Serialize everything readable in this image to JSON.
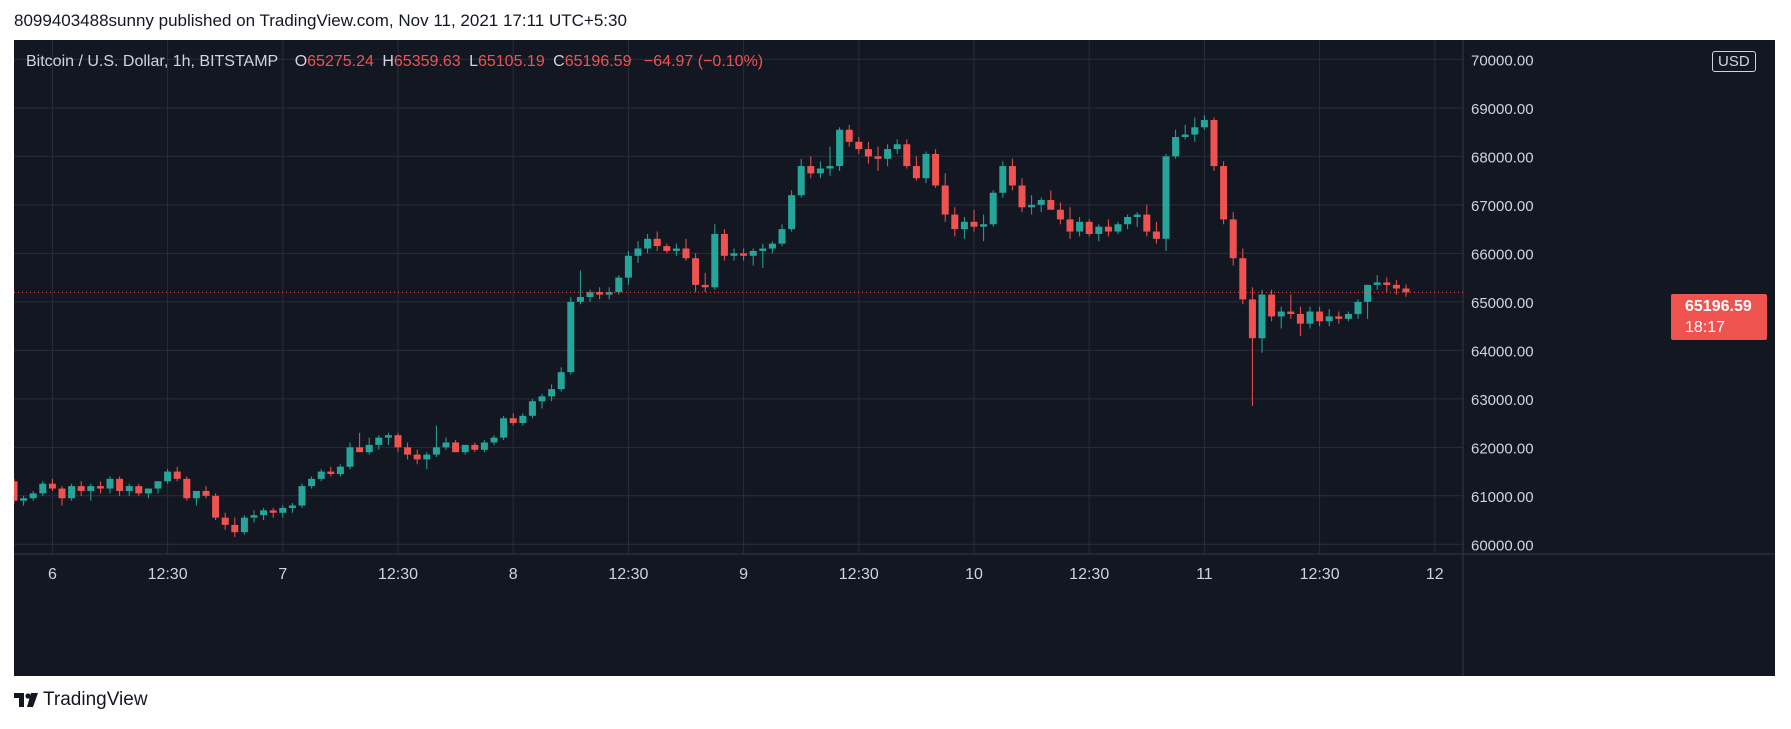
{
  "header": {
    "publisher_line": "8099403488sunny published on TradingView.com, Nov 11, 2021 17:11 UTC+5:30"
  },
  "legend": {
    "symbol": "Bitcoin / U.S. Dollar, 1h, BITSTAMP",
    "o_label": "O",
    "open": "65275.24",
    "h_label": "H",
    "high": "65359.63",
    "l_label": "L",
    "low": "65105.19",
    "c_label": "C",
    "close": "65196.59",
    "change": "−64.97 (−0.10%)"
  },
  "currency": "USD",
  "price_tag": {
    "price": "65196.59",
    "countdown": "18:17"
  },
  "footer": {
    "brand": "TradingView"
  },
  "colors": {
    "up": "#26a69a",
    "down": "#ef5350",
    "background": "#131722",
    "grid": "#2a2e39",
    "text": "#d1d4dc"
  },
  "chart_data": {
    "type": "candlestick",
    "title": "Bitcoin / U.S. Dollar, 1h, BITSTAMP",
    "y_axis": {
      "range": [
        59800,
        70400
      ],
      "ticks": [
        "60000.00",
        "61000.00",
        "62000.00",
        "63000.00",
        "64000.00",
        "65000.00",
        "66000.00",
        "67000.00",
        "68000.00",
        "69000.00",
        "70000.00"
      ]
    },
    "x_axis": {
      "ticks": [
        {
          "index": 4,
          "label": "6"
        },
        {
          "index": 16,
          "label": "12:30"
        },
        {
          "index": 28,
          "label": "7"
        },
        {
          "index": 40,
          "label": "12:30"
        },
        {
          "index": 52,
          "label": "8"
        },
        {
          "index": 64,
          "label": "12:30"
        },
        {
          "index": 76,
          "label": "9"
        },
        {
          "index": 88,
          "label": "12:30"
        },
        {
          "index": 100,
          "label": "10"
        },
        {
          "index": 112,
          "label": "12:30"
        },
        {
          "index": 124,
          "label": "11"
        },
        {
          "index": 136,
          "label": "12:30"
        },
        {
          "index": 148,
          "label": "12"
        }
      ]
    },
    "last_price": 65196.59,
    "candles": [
      [
        61300,
        61350,
        60850,
        60900
      ],
      [
        60900,
        61000,
        60800,
        60950
      ],
      [
        60950,
        61100,
        60900,
        61050
      ],
      [
        61050,
        61300,
        61000,
        61250
      ],
      [
        61250,
        61350,
        61100,
        61150
      ],
      [
        61150,
        61200,
        60800,
        60950
      ],
      [
        60950,
        61250,
        60900,
        61200
      ],
      [
        61200,
        61300,
        61000,
        61100
      ],
      [
        61100,
        61250,
        60900,
        61200
      ],
      [
        61200,
        61300,
        61050,
        61150
      ],
      [
        61150,
        61400,
        61050,
        61350
      ],
      [
        61350,
        61400,
        61000,
        61100
      ],
      [
        61100,
        61250,
        61000,
        61200
      ],
      [
        61200,
        61250,
        61000,
        61050
      ],
      [
        61050,
        61150,
        60950,
        61150
      ],
      [
        61150,
        61300,
        61050,
        61300
      ],
      [
        61300,
        61550,
        61250,
        61500
      ],
      [
        61500,
        61600,
        61300,
        61350
      ],
      [
        61350,
        61400,
        60900,
        60950
      ],
      [
        60950,
        61100,
        60800,
        61100
      ],
      [
        61100,
        61200,
        60950,
        61000
      ],
      [
        61000,
        61050,
        60500,
        60550
      ],
      [
        60550,
        60650,
        60300,
        60400
      ],
      [
        60400,
        60550,
        60150,
        60250
      ],
      [
        60250,
        60600,
        60200,
        60550
      ],
      [
        60550,
        60700,
        60450,
        60600
      ],
      [
        60600,
        60750,
        60500,
        60700
      ],
      [
        60700,
        60750,
        60550,
        60650
      ],
      [
        60650,
        60800,
        60550,
        60750
      ],
      [
        60750,
        60850,
        60650,
        60800
      ],
      [
        60800,
        61250,
        60750,
        61200
      ],
      [
        61200,
        61400,
        61150,
        61350
      ],
      [
        61350,
        61550,
        61300,
        61500
      ],
      [
        61500,
        61600,
        61400,
        61450
      ],
      [
        61450,
        61650,
        61400,
        61600
      ],
      [
        61600,
        62100,
        61550,
        62000
      ],
      [
        62000,
        62300,
        61950,
        61900
      ],
      [
        61900,
        62200,
        61850,
        62050
      ],
      [
        62050,
        62250,
        61950,
        62200
      ],
      [
        62200,
        62300,
        62050,
        62250
      ],
      [
        62250,
        62300,
        61900,
        62000
      ],
      [
        62000,
        62100,
        61750,
        61850
      ],
      [
        61850,
        61950,
        61650,
        61750
      ],
      [
        61750,
        61900,
        61550,
        61850
      ],
      [
        61850,
        62450,
        61800,
        62000
      ],
      [
        62000,
        62200,
        61950,
        62100
      ],
      [
        62100,
        62150,
        61900,
        61900
      ],
      [
        61900,
        62050,
        61850,
        62050
      ],
      [
        62050,
        62100,
        61900,
        61950
      ],
      [
        61950,
        62150,
        61900,
        62100
      ],
      [
        62100,
        62250,
        62050,
        62200
      ],
      [
        62200,
        62650,
        62150,
        62600
      ],
      [
        62600,
        62700,
        62450,
        62500
      ],
      [
        62500,
        62700,
        62450,
        62650
      ],
      [
        62650,
        63000,
        62600,
        62950
      ],
      [
        62950,
        63100,
        62800,
        63050
      ],
      [
        63050,
        63300,
        62950,
        63200
      ],
      [
        63200,
        63650,
        63150,
        63550
      ],
      [
        63550,
        65100,
        63500,
        65000
      ],
      [
        65000,
        65650,
        64950,
        65100
      ],
      [
        65100,
        65250,
        65000,
        65200
      ],
      [
        65200,
        65300,
        65050,
        65150
      ],
      [
        65150,
        65300,
        65050,
        65200
      ],
      [
        65200,
        65550,
        65150,
        65500
      ],
      [
        65500,
        66050,
        65350,
        65950
      ],
      [
        65950,
        66250,
        65800,
        66100
      ],
      [
        66100,
        66400,
        66000,
        66300
      ],
      [
        66300,
        66450,
        66050,
        66150
      ],
      [
        66150,
        66200,
        66000,
        66050
      ],
      [
        66050,
        66200,
        65950,
        66100
      ],
      [
        66100,
        66300,
        65850,
        65900
      ],
      [
        65900,
        66000,
        65200,
        65350
      ],
      [
        65350,
        65600,
        65200,
        65300
      ],
      [
        65300,
        66600,
        65250,
        66400
      ],
      [
        66400,
        66500,
        65850,
        65950
      ],
      [
        65950,
        66100,
        65850,
        66000
      ],
      [
        66000,
        66100,
        65850,
        65950
      ],
      [
        65950,
        66100,
        65750,
        66050
      ],
      [
        66050,
        66200,
        65700,
        66100
      ],
      [
        66100,
        66250,
        66000,
        66200
      ],
      [
        66200,
        66600,
        66150,
        66500
      ],
      [
        66500,
        67300,
        66450,
        67200
      ],
      [
        67200,
        67950,
        67150,
        67800
      ],
      [
        67800,
        68000,
        67550,
        67650
      ],
      [
        67650,
        67900,
        67550,
        67750
      ],
      [
        67750,
        68200,
        67600,
        67800
      ],
      [
        67800,
        68600,
        67700,
        68550
      ],
      [
        68550,
        68650,
        68200,
        68300
      ],
      [
        68300,
        68400,
        68050,
        68150
      ],
      [
        68150,
        68300,
        67850,
        68000
      ],
      [
        68000,
        68200,
        67700,
        67950
      ],
      [
        67950,
        68250,
        67800,
        68150
      ],
      [
        68150,
        68350,
        68050,
        68250
      ],
      [
        68250,
        68350,
        67750,
        67800
      ],
      [
        67800,
        68000,
        67500,
        67550
      ],
      [
        67550,
        68100,
        67450,
        68050
      ],
      [
        68050,
        68150,
        67350,
        67400
      ],
      [
        67400,
        67650,
        66650,
        66800
      ],
      [
        66800,
        66950,
        66350,
        66500
      ],
      [
        66500,
        66750,
        66300,
        66650
      ],
      [
        66650,
        66900,
        66450,
        66550
      ],
      [
        66550,
        66800,
        66250,
        66600
      ],
      [
        66600,
        67300,
        66550,
        67250
      ],
      [
        67250,
        67900,
        67150,
        67800
      ],
      [
        67800,
        67950,
        67300,
        67400
      ],
      [
        67400,
        67550,
        66850,
        66950
      ],
      [
        66950,
        67200,
        66800,
        67000
      ],
      [
        67000,
        67150,
        66850,
        67100
      ],
      [
        67100,
        67300,
        67000,
        66900
      ],
      [
        66900,
        67050,
        66600,
        66700
      ],
      [
        66700,
        66950,
        66300,
        66450
      ],
      [
        66450,
        66750,
        66350,
        66650
      ],
      [
        66650,
        66700,
        66350,
        66400
      ],
      [
        66400,
        66600,
        66250,
        66550
      ],
      [
        66550,
        66700,
        66350,
        66450
      ],
      [
        66450,
        66650,
        66400,
        66600
      ],
      [
        66600,
        66800,
        66500,
        66750
      ],
      [
        66750,
        66850,
        66550,
        66800
      ],
      [
        66800,
        67000,
        66350,
        66450
      ],
      [
        66450,
        66650,
        66200,
        66300
      ],
      [
        66300,
        68050,
        66050,
        68000
      ],
      [
        68000,
        68550,
        67950,
        68400
      ],
      [
        68400,
        68650,
        68350,
        68450
      ],
      [
        68450,
        68800,
        68300,
        68600
      ],
      [
        68600,
        68850,
        68550,
        68750
      ],
      [
        68750,
        68800,
        67700,
        67800
      ],
      [
        67800,
        67900,
        66600,
        66700
      ],
      [
        66700,
        66850,
        65750,
        65900
      ],
      [
        65900,
        66100,
        64950,
        65050
      ],
      [
        65050,
        65300,
        62850,
        64250
      ],
      [
        64250,
        65250,
        63950,
        65150
      ],
      [
        65150,
        65250,
        64600,
        64700
      ],
      [
        64700,
        64900,
        64450,
        64800
      ],
      [
        64800,
        65150,
        64650,
        64750
      ],
      [
        64750,
        64900,
        64300,
        64550
      ],
      [
        64550,
        64900,
        64450,
        64800
      ],
      [
        64800,
        64900,
        64500,
        64600
      ],
      [
        64600,
        64850,
        64500,
        64700
      ],
      [
        64700,
        64800,
        64550,
        64650
      ],
      [
        64650,
        64800,
        64600,
        64750
      ],
      [
        64750,
        65050,
        64650,
        65000
      ],
      [
        65000,
        65300,
        64650,
        65350
      ],
      [
        65350,
        65550,
        65250,
        65400
      ],
      [
        65400,
        65500,
        65200,
        65350
      ],
      [
        65350,
        65450,
        65150,
        65275
      ],
      [
        65275,
        65360,
        65105,
        65197
      ]
    ]
  }
}
